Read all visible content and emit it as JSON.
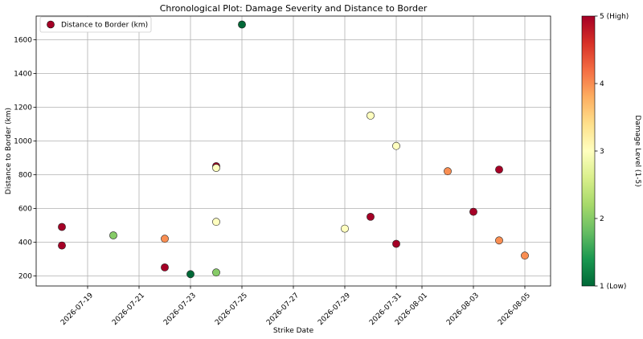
{
  "chart_data": {
    "type": "scatter",
    "title": "Chronological Plot: Damage Severity and Distance to Border",
    "xlabel": "Strike Date",
    "ylabel": "Distance to Border (km)",
    "xlim": [
      "2026-07-17",
      "2026-08-06"
    ],
    "ylim": [
      140,
      1740
    ],
    "x_ticks": [
      "2026-07-19",
      "2026-07-21",
      "2026-07-23",
      "2026-07-25",
      "2026-07-27",
      "2026-07-29",
      "2026-07-31",
      "2026-08-01",
      "2026-08-03",
      "2026-08-05"
    ],
    "y_ticks": [
      200,
      400,
      600,
      800,
      1000,
      1200,
      1400,
      1600
    ],
    "grid": true,
    "legend": {
      "placement": "top-left",
      "label": "Distance to Border (km)"
    },
    "colorbar": {
      "label": "Damage Level (1-5)",
      "ticks": [
        {
          "value": 1,
          "label": "1 (Low)"
        },
        {
          "value": 2,
          "label": "2"
        },
        {
          "value": 3,
          "label": "3"
        },
        {
          "value": 4,
          "label": "4"
        },
        {
          "value": 5,
          "label": "5 (High)"
        }
      ],
      "colormap": [
        "#006837",
        "#1a9850",
        "#66bd63",
        "#a6d96a",
        "#d9ef8b",
        "#ffffbf",
        "#fee08b",
        "#fdae61",
        "#f46d43",
        "#d73027",
        "#a50026"
      ]
    },
    "points": [
      {
        "date": "2026-07-18",
        "distance": 490,
        "damage": 5
      },
      {
        "date": "2026-07-18",
        "distance": 380,
        "damage": 5
      },
      {
        "date": "2026-07-20",
        "distance": 440,
        "damage": 2
      },
      {
        "date": "2026-07-22",
        "distance": 420,
        "damage": 4
      },
      {
        "date": "2026-07-22",
        "distance": 250,
        "damage": 5
      },
      {
        "date": "2026-07-23",
        "distance": 210,
        "damage": 1
      },
      {
        "date": "2026-07-24",
        "distance": 850,
        "damage": 5
      },
      {
        "date": "2026-07-24",
        "distance": 840,
        "damage": 3
      },
      {
        "date": "2026-07-24",
        "distance": 520,
        "damage": 3
      },
      {
        "date": "2026-07-24",
        "distance": 220,
        "damage": 2
      },
      {
        "date": "2026-07-25",
        "distance": 1690,
        "damage": 1
      },
      {
        "date": "2026-07-29",
        "distance": 480,
        "damage": 3
      },
      {
        "date": "2026-07-30",
        "distance": 1150,
        "damage": 3
      },
      {
        "date": "2026-07-30",
        "distance": 550,
        "damage": 5
      },
      {
        "date": "2026-07-31",
        "distance": 970,
        "damage": 3
      },
      {
        "date": "2026-07-31",
        "distance": 390,
        "damage": 5
      },
      {
        "date": "2026-08-02",
        "distance": 820,
        "damage": 4
      },
      {
        "date": "2026-08-03",
        "distance": 580,
        "damage": 5
      },
      {
        "date": "2026-08-04",
        "distance": 830,
        "damage": 5
      },
      {
        "date": "2026-08-04",
        "distance": 410,
        "damage": 4
      },
      {
        "date": "2026-08-05",
        "distance": 320,
        "damage": 4
      }
    ]
  }
}
